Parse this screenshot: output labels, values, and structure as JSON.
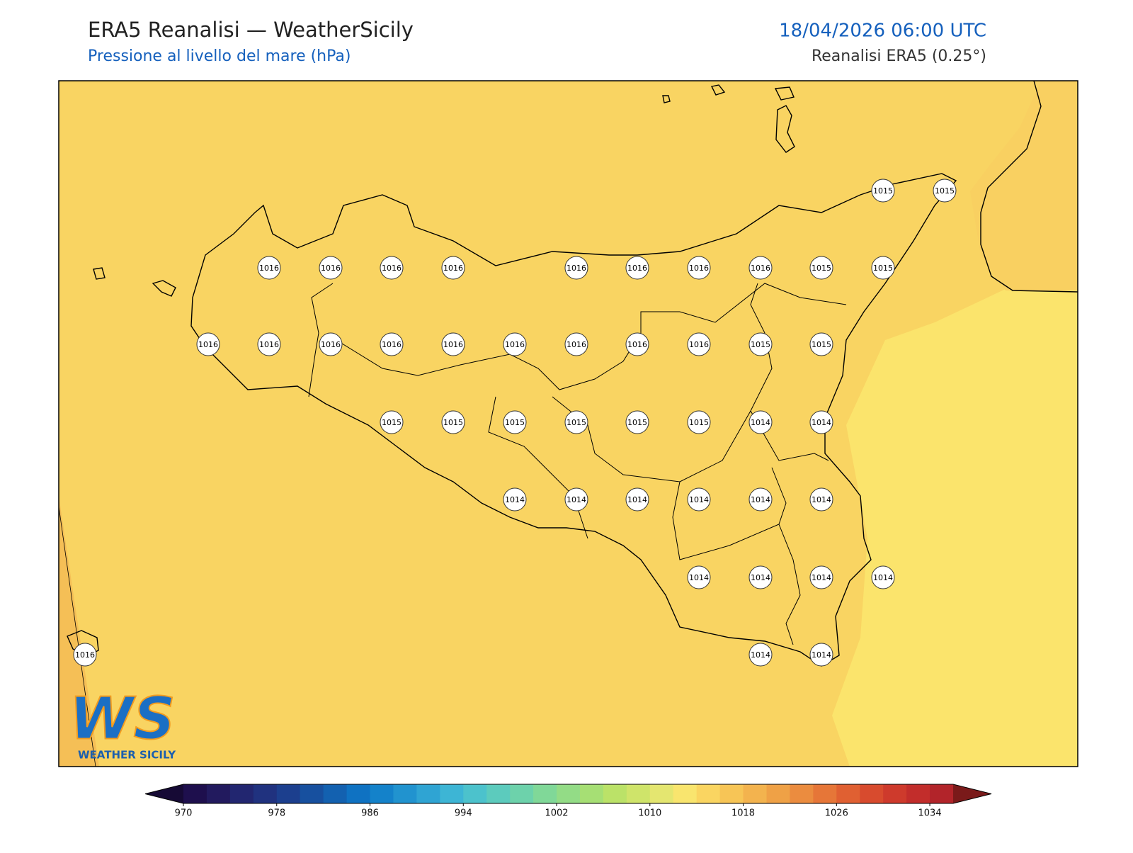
{
  "header": {
    "title": "ERA5 Reanalisi — WeatherSicily",
    "subtitle": "Pressione al livello del mare (hPa)",
    "date": "18/04/2026 06:00 UTC",
    "source": "Reanalisi ERA5 (0.25°)"
  },
  "map": {
    "labels": [
      1015,
      1015,
      1016,
      1016,
      1016,
      1016,
      1016,
      1016,
      1016,
      1016,
      1015,
      1015,
      1016,
      1016,
      1016,
      1016,
      1016,
      1016,
      1016,
      1016,
      1016,
      1015,
      1015,
      1015,
      1015,
      1015,
      1015,
      1015,
      1015,
      1014,
      1014,
      1014,
      1014,
      1014,
      1014,
      1014,
      1014,
      1014,
      1014,
      1014,
      1014,
      1016,
      1014,
      1014
    ]
  },
  "logo": {
    "mark": "WS",
    "name": "WEATHER SICILY"
  },
  "colorbar": {
    "lim": [
      970,
      1036
    ],
    "ticks": [
      970,
      978,
      986,
      994,
      1002,
      1010,
      1018,
      1026,
      1034
    ],
    "colors": [
      "#1e0f4d",
      "#221a5e",
      "#222670",
      "#20327f",
      "#1c3f8e",
      "#17509f",
      "#1361b0",
      "#0f72c2",
      "#1482ca",
      "#2193cf",
      "#2fa4d3",
      "#3db5d5",
      "#4cc2cc",
      "#5ccbbd",
      "#6dd2ab",
      "#80d898",
      "#93dc86",
      "#a6df74",
      "#bbe268",
      "#cfe46a",
      "#e4e670",
      "#f9e56e",
      "#fad561",
      "#f7c556",
      "#f3b34e",
      "#efa146",
      "#eb8c3f",
      "#e67638",
      "#e06032",
      "#d84b2e",
      "#ce3a2c",
      "#c22d2b",
      "#b2242a"
    ],
    "extend_colors": [
      "#160a35",
      "#7a1a1a"
    ]
  }
}
